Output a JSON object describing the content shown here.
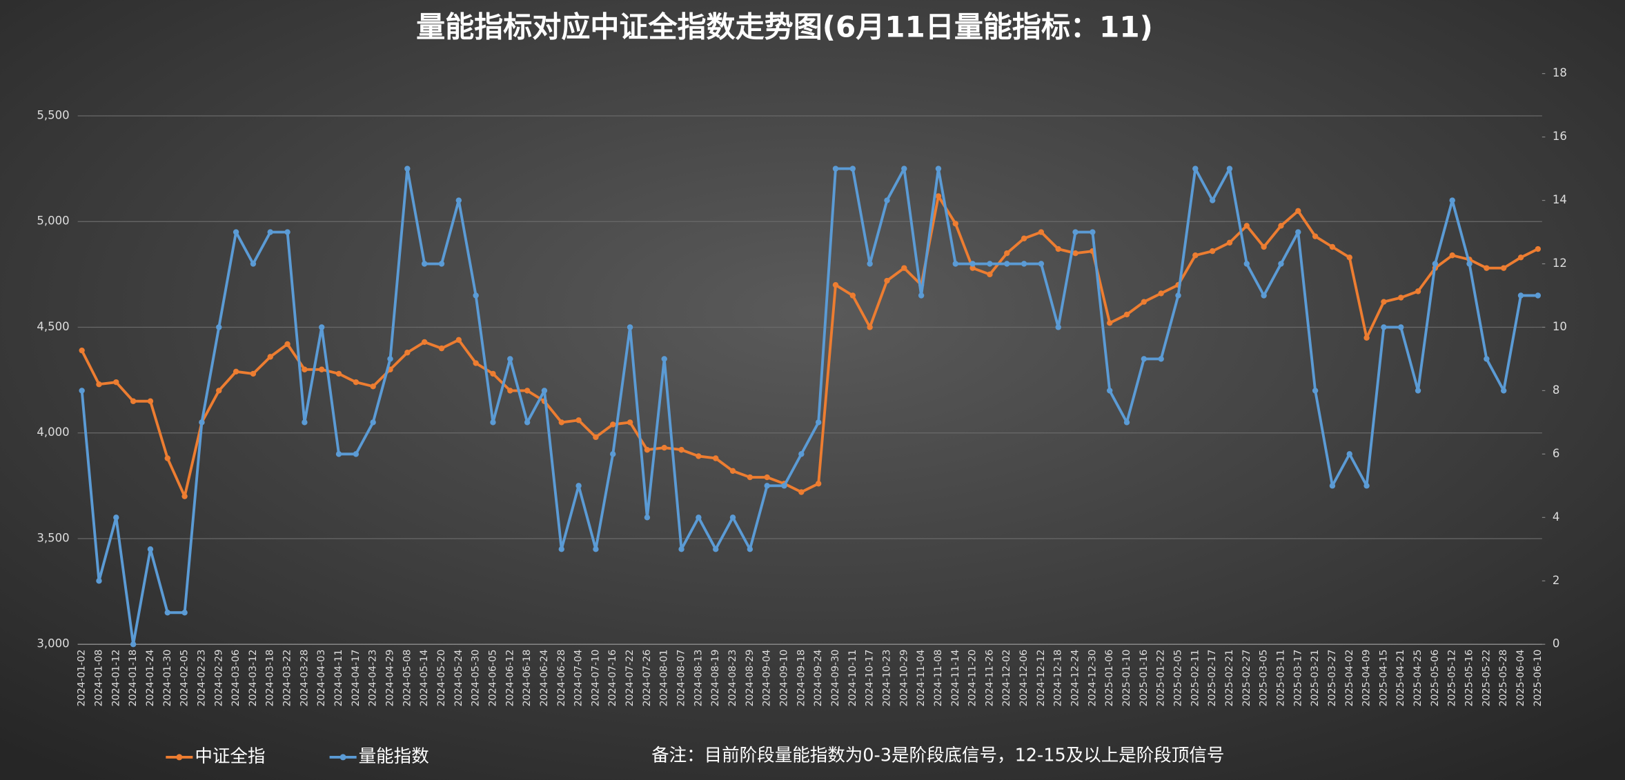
{
  "chart_data": {
    "type": "line",
    "title": "量能指标对应中证全指数走势图(6月11日量能指标：11)",
    "note": "备注：目前阶段量能指数为0-3是阶段底信号，12-15及以上是阶段顶信号",
    "legend": "bottom",
    "grid": true,
    "categories": [
      "2024-01-02",
      "2024-01-08",
      "2024-01-12",
      "2024-01-18",
      "2024-01-24",
      "2024-01-30",
      "2024-02-05",
      "2024-02-23",
      "2024-02-29",
      "2024-03-06",
      "2024-03-12",
      "2024-03-18",
      "2024-03-22",
      "2024-03-28",
      "2024-04-03",
      "2024-04-11",
      "2024-04-17",
      "2024-04-23",
      "2024-04-29",
      "2024-05-08",
      "2024-05-14",
      "2024-05-20",
      "2024-05-24",
      "2024-05-30",
      "2024-06-05",
      "2024-06-12",
      "2024-06-18",
      "2024-06-24",
      "2024-06-28",
      "2024-07-04",
      "2024-07-10",
      "2024-07-16",
      "2024-07-22",
      "2024-07-26",
      "2024-08-01",
      "2024-08-07",
      "2024-08-13",
      "2024-08-19",
      "2024-08-23",
      "2024-08-29",
      "2024-09-04",
      "2024-09-10",
      "2024-09-18",
      "2024-09-24",
      "2024-09-30",
      "2024-10-11",
      "2024-10-17",
      "2024-10-23",
      "2024-10-29",
      "2024-11-04",
      "2024-11-08",
      "2024-11-14",
      "2024-11-20",
      "2024-11-26",
      "2024-12-02",
      "2024-12-06",
      "2024-12-12",
      "2024-12-18",
      "2024-12-24",
      "2024-12-30",
      "2025-01-06",
      "2025-01-10",
      "2025-01-16",
      "2025-01-22",
      "2025-02-05",
      "2025-02-11",
      "2025-02-17",
      "2025-02-21",
      "2025-02-27",
      "2025-03-05",
      "2025-03-11",
      "2025-03-17",
      "2025-03-21",
      "2025-03-27",
      "2025-04-02",
      "2025-04-09",
      "2025-04-15",
      "2025-04-21",
      "2025-04-25",
      "2025-05-06",
      "2025-05-12",
      "2025-05-16",
      "2025-05-22",
      "2025-05-28",
      "2025-06-04",
      "2025-06-10"
    ],
    "series": [
      {
        "name": "中证全指",
        "color": "#ed7d31",
        "axis": "y",
        "values": [
          4390,
          4230,
          4240,
          4150,
          4150,
          3880,
          3700,
          4050,
          4200,
          4290,
          4280,
          4360,
          4420,
          4300,
          4300,
          4280,
          4240,
          4220,
          4300,
          4380,
          4430,
          4400,
          4440,
          4330,
          4280,
          4200,
          4200,
          4150,
          4050,
          4060,
          3980,
          4040,
          4050,
          3920,
          3930,
          3920,
          3890,
          3880,
          3820,
          3790,
          3790,
          3760,
          3720,
          3760,
          4700,
          4650,
          4500,
          4720,
          4780,
          4700,
          5120,
          4990,
          4780,
          4750,
          4850,
          4920,
          4950,
          4870,
          4850,
          4860,
          4520,
          4560,
          4620,
          4660,
          4700,
          4840,
          4860,
          4900,
          4980,
          4880,
          4980,
          5050,
          4930,
          4880,
          4830,
          4450,
          4620,
          4640,
          4670,
          4780,
          4840,
          4820,
          4780,
          4780,
          4830,
          4870
        ]
      },
      {
        "name": "量能指数",
        "color": "#5b9bd5",
        "axis": "y2",
        "values": [
          8,
          2,
          4,
          0,
          3,
          1,
          1,
          7,
          10,
          13,
          12,
          13,
          13,
          7,
          10,
          6,
          6,
          7,
          9,
          15,
          12,
          12,
          14,
          11,
          7,
          9,
          7,
          8,
          3,
          5,
          3,
          6,
          10,
          4,
          9,
          3,
          4,
          3,
          4,
          3,
          5,
          5,
          6,
          7,
          15,
          15,
          12,
          14,
          15,
          11,
          15,
          12,
          12,
          12,
          12,
          12,
          12,
          10,
          13,
          13,
          8,
          7,
          9,
          9,
          11,
          15,
          14,
          15,
          12,
          11,
          12,
          13,
          8,
          5,
          6,
          5,
          10,
          10,
          8,
          12,
          14,
          12,
          9,
          8,
          11,
          11
        ]
      }
    ],
    "ylim": [
      3000,
      5700
    ],
    "yticks": [
      {
        "value": 3000,
        "label": "3,000"
      },
      {
        "value": 3500,
        "label": "3,500"
      },
      {
        "value": 4000,
        "label": "4,000"
      },
      {
        "value": 4500,
        "label": "4,500"
      },
      {
        "value": 5000,
        "label": "5,000"
      },
      {
        "value": 5500,
        "label": "5,500"
      }
    ],
    "y2lim": [
      0,
      18
    ],
    "y2ticks": [
      0,
      2,
      4,
      6,
      8,
      10,
      12,
      14,
      16,
      18
    ]
  }
}
